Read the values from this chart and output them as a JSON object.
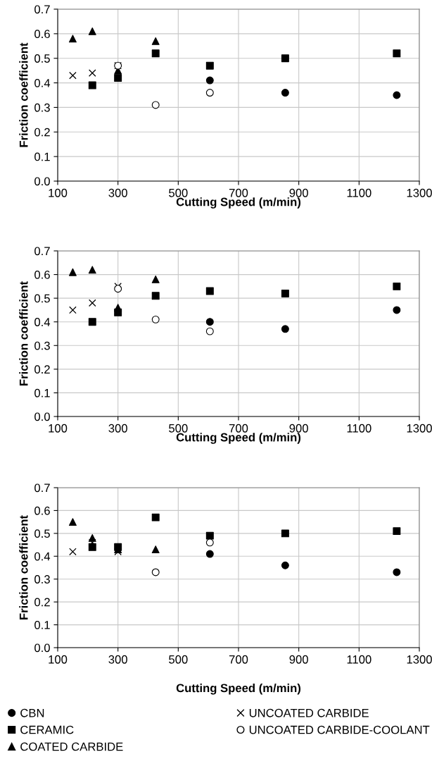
{
  "chart_data": [
    {
      "type": "scatter",
      "xlabel": "Cutting Speed (m/min)",
      "ylabel": "Friction coefficient",
      "xlim": [
        100,
        1300
      ],
      "xticks": [
        100,
        300,
        500,
        700,
        900,
        1100,
        1300
      ],
      "ylim": [
        0,
        0.7
      ],
      "yticks": [
        {
          "value": 0,
          "label": "0.0"
        },
        {
          "value": 0.1,
          "label": "0.1"
        },
        {
          "value": 0.2,
          "label": "0.2"
        },
        {
          "value": 0.3,
          "label": "0.3"
        },
        {
          "value": 0.4,
          "label": "0.4"
        },
        {
          "value": 0.5,
          "label": "0.5"
        },
        {
          "value": 0.6,
          "label": "0.6"
        },
        {
          "value": 0.7,
          "label": "0.7"
        }
      ],
      "grid": true,
      "series": [
        {
          "color": "#000000",
          "marker": "circle",
          "x": [
            605,
            855,
            1225
          ],
          "values": [
            0.41,
            0.36,
            0.35
          ]
        },
        {
          "color": "#000000",
          "marker": "square",
          "x": [
            215,
            300,
            425,
            605,
            855,
            1225
          ],
          "values": [
            0.39,
            0.42,
            0.52,
            0.47,
            0.5,
            0.52
          ]
        },
        {
          "color": "#000000",
          "marker": "triangle",
          "x": [
            150,
            215,
            300,
            425
          ],
          "values": [
            0.58,
            0.61,
            0.45,
            0.57
          ]
        },
        {
          "color": "#000000",
          "marker": "cross",
          "x": [
            150,
            215,
            300
          ],
          "values": [
            0.43,
            0.44,
            0.47
          ]
        },
        {
          "color": "#ffffff",
          "marker": "circle",
          "x": [
            300,
            425,
            605
          ],
          "values": [
            0.47,
            0.31,
            0.36
          ]
        }
      ]
    },
    {
      "type": "scatter",
      "xlabel": "Cutting Speed (m/min)",
      "ylabel": "Friction coefficient",
      "xlim": [
        100,
        1300
      ],
      "xticks": [
        100,
        300,
        500,
        700,
        900,
        1100,
        1300
      ],
      "ylim": [
        0,
        0.7
      ],
      "yticks": [
        {
          "value": 0,
          "label": "0.0"
        },
        {
          "value": 0.1,
          "label": "0.1"
        },
        {
          "value": 0.2,
          "label": "0.2"
        },
        {
          "value": 0.3,
          "label": "0.3"
        },
        {
          "value": 0.4,
          "label": "0.4"
        },
        {
          "value": 0.5,
          "label": "0.5"
        },
        {
          "value": 0.6,
          "label": "0.6"
        },
        {
          "value": 0.7,
          "label": "0.7"
        }
      ],
      "grid": true,
      "series": [
        {
          "color": "#000000",
          "marker": "circle",
          "x": [
            605,
            855,
            1225
          ],
          "values": [
            0.4,
            0.37,
            0.45
          ]
        },
        {
          "color": "#000000",
          "marker": "square",
          "x": [
            215,
            300,
            425,
            605,
            855,
            1225
          ],
          "values": [
            0.4,
            0.44,
            0.51,
            0.53,
            0.52,
            0.55
          ]
        },
        {
          "color": "#000000",
          "marker": "triangle",
          "x": [
            150,
            215,
            300,
            425
          ],
          "values": [
            0.61,
            0.62,
            0.46,
            0.58
          ]
        },
        {
          "color": "#000000",
          "marker": "cross",
          "x": [
            150,
            215,
            300
          ],
          "values": [
            0.45,
            0.48,
            0.55
          ]
        },
        {
          "color": "#ffffff",
          "marker": "circle",
          "x": [
            300,
            425,
            605
          ],
          "values": [
            0.54,
            0.41,
            0.36
          ]
        }
      ]
    },
    {
      "type": "scatter",
      "xlabel": "Cutting Speed (m/min)",
      "ylabel": "Friction coefficient",
      "xlim": [
        100,
        1300
      ],
      "xticks": [
        100,
        300,
        500,
        700,
        900,
        1100,
        1300
      ],
      "ylim": [
        0,
        0.7
      ],
      "yticks": [
        {
          "value": 0,
          "label": "0.0"
        },
        {
          "value": 0.1,
          "label": "0.1"
        },
        {
          "value": 0.2,
          "label": "0.2"
        },
        {
          "value": 0.3,
          "label": "0.3"
        },
        {
          "value": 0.4,
          "label": "0.4"
        },
        {
          "value": 0.5,
          "label": "0.5"
        },
        {
          "value": 0.6,
          "label": "0.6"
        },
        {
          "value": 0.7,
          "label": "0.7"
        }
      ],
      "grid": true,
      "legend": "bottom",
      "series": [
        {
          "name": "CBN",
          "color": "#000000",
          "marker": "circle",
          "x": [
            605,
            855,
            1225
          ],
          "values": [
            0.41,
            0.36,
            0.33
          ]
        },
        {
          "name": "CERAMIC",
          "color": "#000000",
          "marker": "square",
          "x": [
            215,
            300,
            425,
            605,
            855,
            1225
          ],
          "values": [
            0.44,
            0.44,
            0.57,
            0.49,
            0.5,
            0.51
          ]
        },
        {
          "name": "COATED CARBIDE",
          "color": "#000000",
          "marker": "triangle",
          "x": [
            150,
            215,
            300,
            425
          ],
          "values": [
            0.55,
            0.48,
            0.43,
            0.43
          ]
        },
        {
          "name": "UNCOATED CARBIDE",
          "color": "#000000",
          "marker": "cross",
          "x": [
            150,
            215,
            300
          ],
          "values": [
            0.42,
            0.46,
            0.42
          ]
        },
        {
          "name": "UNCOATED CARBIDE-COOLANT",
          "color": "#ffffff",
          "marker": "circle",
          "x": [
            425,
            605
          ],
          "values": [
            0.33,
            0.46
          ]
        }
      ]
    }
  ]
}
